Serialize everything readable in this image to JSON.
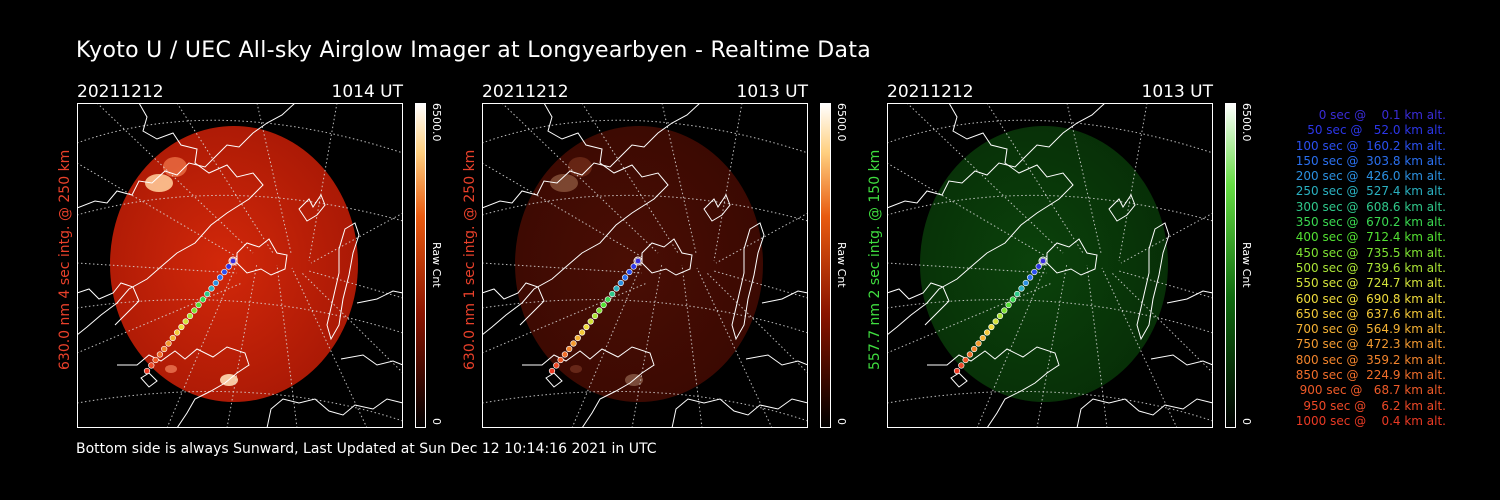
{
  "header": {
    "title": "Kyoto U / UEC All-sky Airglow Imager at Longyearbyen - Realtime Data"
  },
  "panels": [
    {
      "date": "20211212",
      "time": "1014 UT",
      "side_label": "630.0 nm 4 sec intg. @ 250 km",
      "side_label_color": "#e8402a",
      "cbar_max": "6500.0",
      "cbar_unit": "Raw Cnt",
      "cbar_min": "0",
      "hue": "red",
      "brightness": 1.0
    },
    {
      "date": "20211212",
      "time": "1013 UT",
      "side_label": "630.0 nm 1 sec intg. @ 250 km",
      "side_label_color": "#e8402a",
      "cbar_max": "6500.0",
      "cbar_unit": "Raw Cnt",
      "cbar_min": "0",
      "hue": "red",
      "brightness": 0.35
    },
    {
      "date": "20211212",
      "time": "1013 UT",
      "side_label": "557.7 nm 2 sec intg. @ 150 km",
      "side_label_color": "#3fdc3f",
      "cbar_max": "6500.0",
      "cbar_unit": "Raw Cnt",
      "cbar_min": "0",
      "hue": "green",
      "brightness": 0.55
    }
  ],
  "footer": {
    "text": "Bottom side is always Sunward, Last Updated at Sun Dec 12 10:14:16 2021 in UTC"
  },
  "trajectory_legend": [
    {
      "text": "0 sec @    0.1 km alt.",
      "color": "#3a2cd8"
    },
    {
      "text": "50 sec @   52.0 km alt.",
      "color": "#2c36e8"
    },
    {
      "text": "100 sec @  160.2 km alt.",
      "color": "#2a50f0"
    },
    {
      "text": "150 sec @  303.8 km alt.",
      "color": "#2a70f0"
    },
    {
      "text": "200 sec @  426.0 km alt.",
      "color": "#2b8fe0"
    },
    {
      "text": "250 sec @  527.4 km alt.",
      "color": "#2ab0c0"
    },
    {
      "text": "300 sec @  608.6 km alt.",
      "color": "#2fc88a"
    },
    {
      "text": "350 sec @  670.2 km alt.",
      "color": "#3ad850"
    },
    {
      "text": "400 sec @  712.4 km alt.",
      "color": "#52e032"
    },
    {
      "text": "450 sec @  735.5 km alt.",
      "color": "#7ee232"
    },
    {
      "text": "500 sec @  739.6 km alt.",
      "color": "#aae436"
    },
    {
      "text": "550 sec @  724.7 km alt.",
      "color": "#d2e23a"
    },
    {
      "text": "600 sec @  690.8 km alt.",
      "color": "#f0dc3c"
    },
    {
      "text": "650 sec @  637.6 km alt.",
      "color": "#f4c838"
    },
    {
      "text": "700 sec @  564.9 km alt.",
      "color": "#f4b234"
    },
    {
      "text": "750 sec @  472.3 km alt.",
      "color": "#f39a30"
    },
    {
      "text": "800 sec @  359.2 km alt.",
      "color": "#f2842c"
    },
    {
      "text": "850 sec @  224.9 km alt.",
      "color": "#f06e2a"
    },
    {
      "text": "900 sec @   68.7 km alt.",
      "color": "#ee5a28"
    },
    {
      "text": "950 sec @    6.2 km alt.",
      "color": "#ec4826"
    },
    {
      "text": "1000 sec @    0.4 km alt.",
      "color": "#ea3a24"
    }
  ]
}
